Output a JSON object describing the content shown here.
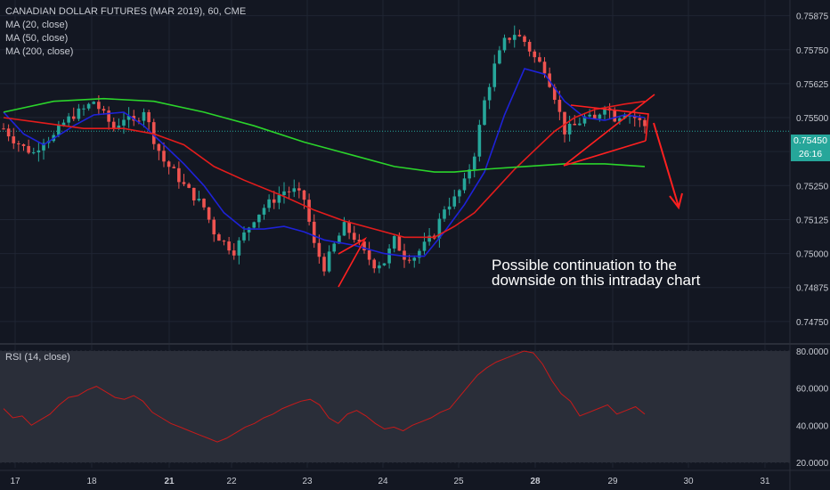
{
  "legend": {
    "title": "CANADIAN DOLLAR FUTURES (MAR 2019), 60, CME",
    "ma20": "MA (20, close)",
    "ma50": "MA (50, close)",
    "ma200": "MA (200, close)",
    "rsi": "RSI (14, close)"
  },
  "annotation": {
    "line1": "Possible continuation to the",
    "line2": "downside on this intraday chart"
  },
  "price_labels": {
    "last_price": "0.75450",
    "countdown": "26:16",
    "last_color": "#26a69a",
    "countdown_color": "#26a69a"
  },
  "colors": {
    "background": "#131722",
    "grid": "#1f2533",
    "axis_text": "#c8cbd3",
    "candle_up": "#26a69a",
    "candle_down": "#ef5350",
    "ma20": "#1e22d8",
    "ma50": "#e31c1c",
    "ma200": "#2bd42b",
    "rsi_line": "#c71a1a",
    "rsi_band": "#2a2e39",
    "annotation": "#ff2020"
  },
  "chart_data": [
    {
      "type": "candlestick",
      "title": "CANADIAN DOLLAR FUTURES (MAR 2019), 60, CME",
      "x_ticks": [
        "17",
        "18",
        "21",
        "22",
        "23",
        "24",
        "25",
        "28",
        "29",
        "30",
        "31"
      ],
      "y_ticks": [
        "0.75875",
        "0.75750",
        "0.75625",
        "0.75500",
        "0.75375",
        "0.75250",
        "0.75125",
        "0.75000",
        "0.74875",
        "0.74750"
      ],
      "ylim": [
        0.747,
        0.7595
      ],
      "last_price": 0.7545,
      "close_path": [
        [
          0,
          0.7546
        ],
        [
          2,
          0.7542
        ],
        [
          4,
          0.7539
        ],
        [
          6,
          0.7537
        ],
        [
          8,
          0.7542
        ],
        [
          10,
          0.7543
        ],
        [
          12,
          0.7548
        ],
        [
          14,
          0.7551
        ],
        [
          16,
          0.7553
        ],
        [
          18,
          0.7556
        ],
        [
          20,
          0.7551
        ],
        [
          22,
          0.7546
        ],
        [
          24,
          0.755
        ],
        [
          26,
          0.7548
        ],
        [
          28,
          0.7553
        ],
        [
          30,
          0.7542
        ],
        [
          32,
          0.7534
        ],
        [
          34,
          0.753
        ],
        [
          36,
          0.7525
        ],
        [
          38,
          0.7521
        ],
        [
          40,
          0.7517
        ],
        [
          42,
          0.7508
        ],
        [
          44,
          0.7504
        ],
        [
          46,
          0.7501
        ],
        [
          48,
          0.7507
        ],
        [
          50,
          0.7513
        ],
        [
          52,
          0.7517
        ],
        [
          54,
          0.752
        ],
        [
          56,
          0.7523
        ],
        [
          58,
          0.7523
        ],
        [
          60,
          0.752
        ],
        [
          62,
          0.7503
        ],
        [
          64,
          0.7495
        ],
        [
          66,
          0.7503
        ],
        [
          68,
          0.751
        ],
        [
          70,
          0.7506
        ],
        [
          72,
          0.75
        ],
        [
          74,
          0.7496
        ],
        [
          76,
          0.7497
        ],
        [
          78,
          0.7505
        ],
        [
          80,
          0.7499
        ],
        [
          82,
          0.7499
        ],
        [
          84,
          0.7503
        ],
        [
          86,
          0.7507
        ],
        [
          88,
          0.7517
        ],
        [
          90,
          0.752
        ],
        [
          92,
          0.7526
        ],
        [
          94,
          0.7537
        ],
        [
          96,
          0.7556
        ],
        [
          98,
          0.7569
        ],
        [
          100,
          0.7578
        ],
        [
          102,
          0.7581
        ],
        [
          104,
          0.7578
        ],
        [
          106,
          0.7572
        ],
        [
          108,
          0.7568
        ],
        [
          110,
          0.7558
        ],
        [
          112,
          0.7545
        ],
        [
          114,
          0.7547
        ],
        [
          116,
          0.755
        ],
        [
          118,
          0.7549
        ],
        [
          120,
          0.7555
        ],
        [
          122,
          0.755
        ],
        [
          124,
          0.7552
        ],
        [
          126,
          0.755
        ],
        [
          128,
          0.7547
        ]
      ],
      "moving_averages": [
        {
          "name": "MA (20, close)",
          "points": [
            [
              0,
              0.7552
            ],
            [
              4,
              0.7544
            ],
            [
              8,
              0.754
            ],
            [
              14,
              0.7547
            ],
            [
              18,
              0.7551
            ],
            [
              24,
              0.7552
            ],
            [
              28,
              0.7547
            ],
            [
              32,
              0.754
            ],
            [
              36,
              0.7533
            ],
            [
              40,
              0.7525
            ],
            [
              44,
              0.7515
            ],
            [
              48,
              0.7509
            ],
            [
              52,
              0.7509
            ],
            [
              56,
              0.751
            ],
            [
              60,
              0.7508
            ],
            [
              64,
              0.7505
            ],
            [
              70,
              0.7503
            ],
            [
              76,
              0.75
            ],
            [
              80,
              0.7499
            ],
            [
              84,
              0.7499
            ],
            [
              88,
              0.7508
            ],
            [
              92,
              0.7518
            ],
            [
              96,
              0.753
            ],
            [
              100,
              0.7551
            ],
            [
              104,
              0.7568
            ],
            [
              108,
              0.7566
            ],
            [
              112,
              0.7556
            ],
            [
              116,
              0.755
            ],
            [
              120,
              0.7549
            ],
            [
              124,
              0.7551
            ],
            [
              128,
              0.755
            ]
          ]
        },
        {
          "name": "MA (50, close)",
          "points": [
            [
              0,
              0.755
            ],
            [
              8,
              0.7548
            ],
            [
              16,
              0.7546
            ],
            [
              24,
              0.7546
            ],
            [
              30,
              0.7544
            ],
            [
              36,
              0.754
            ],
            [
              42,
              0.7532
            ],
            [
              48,
              0.7527
            ],
            [
              56,
              0.7521
            ],
            [
              62,
              0.7516
            ],
            [
              68,
              0.7512
            ],
            [
              74,
              0.7509
            ],
            [
              80,
              0.7506
            ],
            [
              86,
              0.7506
            ],
            [
              90,
              0.751
            ],
            [
              94,
              0.7515
            ],
            [
              98,
              0.7523
            ],
            [
              102,
              0.7531
            ],
            [
              106,
              0.7538
            ],
            [
              110,
              0.7545
            ],
            [
              114,
              0.755
            ],
            [
              118,
              0.7553
            ],
            [
              124,
              0.7555
            ],
            [
              128,
              0.7556
            ]
          ]
        },
        {
          "name": "MA (200, close)",
          "points": [
            [
              0,
              0.7552
            ],
            [
              10,
              0.7556
            ],
            [
              20,
              0.7557
            ],
            [
              30,
              0.7556
            ],
            [
              40,
              0.7552
            ],
            [
              50,
              0.7547
            ],
            [
              60,
              0.7541
            ],
            [
              70,
              0.7536
            ],
            [
              78,
              0.7532
            ],
            [
              86,
              0.753
            ],
            [
              90,
              0.753
            ],
            [
              96,
              0.7531
            ],
            [
              104,
              0.7532
            ],
            [
              112,
              0.7533
            ],
            [
              120,
              0.7533
            ],
            [
              128,
              0.7532
            ]
          ]
        }
      ]
    },
    {
      "type": "line",
      "title": "RSI (14, close)",
      "y_ticks": [
        "80.0000",
        "60.0000",
        "40.0000",
        "20.0000"
      ],
      "ylim": [
        20,
        80
      ],
      "values": [
        49,
        44,
        45,
        40,
        43,
        46,
        51,
        55,
        56,
        59,
        61,
        58,
        55,
        54,
        56,
        53,
        47,
        44,
        41,
        39,
        37,
        35,
        33,
        31,
        33,
        36,
        39,
        41,
        44,
        46,
        49,
        51,
        53,
        54,
        51,
        44,
        41,
        46,
        48,
        45,
        41,
        38,
        39,
        37,
        40,
        42,
        44,
        47,
        49,
        55,
        61,
        67,
        71,
        74,
        76,
        78,
        80,
        79,
        73,
        64,
        57,
        53,
        45,
        47,
        49,
        51,
        46,
        48,
        50,
        46
      ]
    }
  ]
}
